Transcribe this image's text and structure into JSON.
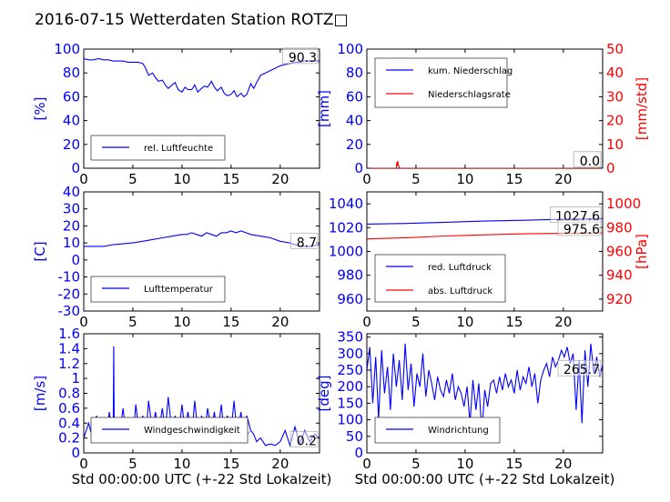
{
  "figure": {
    "title": "2016-07-15 Wetterdaten Station ROTZ□"
  },
  "colors": {
    "primary": "#0000ff",
    "secondary": "#ff0000",
    "axis": "#000000",
    "light": "#8080ff"
  },
  "chart_data": [
    {
      "id": "humidity",
      "type": "line",
      "xlim": [
        0,
        24
      ],
      "xticks": [
        0,
        5,
        10,
        15,
        20
      ],
      "ylim": [
        0,
        100
      ],
      "yticks": [
        0,
        20,
        40,
        60,
        80,
        100
      ],
      "ylabel": "[%]",
      "xlabel": "",
      "legend": {
        "entries": [
          "rel. Luftfeuchte"
        ],
        "placement": "lower-left"
      },
      "annotation": "90.3",
      "series": [
        {
          "name": "rel. Luftfeuchte",
          "color": "primary",
          "x": [
            0,
            0.5,
            1,
            1.5,
            2,
            2.5,
            3,
            3.5,
            4,
            4.5,
            5,
            5.5,
            6,
            6.3,
            6.6,
            7,
            7.3,
            7.6,
            8,
            8.3,
            8.6,
            9,
            9.3,
            9.6,
            10,
            10.3,
            10.6,
            11,
            11.3,
            11.6,
            12,
            12.3,
            12.6,
            13,
            13.3,
            13.6,
            14,
            14.3,
            14.6,
            15,
            15.3,
            15.6,
            16,
            16.3,
            16.6,
            17,
            17.3,
            17.6,
            18,
            18.5,
            19,
            19.5,
            20,
            20.5,
            21,
            21.5,
            22,
            22.5,
            23,
            23.5,
            24
          ],
          "y": [
            92,
            91,
            91,
            92,
            91,
            91,
            90,
            90,
            90,
            89,
            89,
            89,
            88,
            84,
            78,
            80,
            76,
            73,
            74,
            70,
            67,
            70,
            72,
            66,
            64,
            68,
            66,
            66,
            70,
            64,
            67,
            69,
            68,
            73,
            68,
            65,
            68,
            63,
            61,
            62,
            65,
            60,
            63,
            60,
            62,
            71,
            67,
            72,
            78,
            80,
            82,
            84,
            86,
            87,
            88,
            89,
            89,
            90,
            90,
            90,
            90
          ]
        }
      ]
    },
    {
      "id": "precip",
      "type": "line",
      "xlim": [
        0,
        24
      ],
      "xticks": [
        0,
        5,
        10,
        15,
        20
      ],
      "ylim": [
        0,
        100
      ],
      "yticks": [
        0,
        20,
        40,
        60,
        80,
        100
      ],
      "ylabel": "[mm]",
      "xlabel": "",
      "ylim2": [
        0,
        50
      ],
      "yticks2": [
        0,
        10,
        20,
        30,
        40,
        50
      ],
      "ylabel2": "[mm/std]",
      "legend": {
        "entries": [
          "kum. Niederschlag",
          "Niederschlagsrate"
        ],
        "placement": "upper-left"
      },
      "annotation": "0.0",
      "annotation2": "0.0",
      "series": [
        {
          "name": "kum. Niederschlag",
          "color": "primary",
          "x": [
            0,
            24
          ],
          "y": [
            0,
            0
          ]
        },
        {
          "name": "Niederschlagsrate",
          "color": "secondary",
          "axis": 2,
          "x": [
            0,
            3,
            3.05,
            3.1,
            3.15,
            3.2,
            3.3,
            3.4,
            24
          ],
          "y": [
            0,
            0,
            2.5,
            1.0,
            3.0,
            1.2,
            0.5,
            0,
            0
          ]
        }
      ]
    },
    {
      "id": "temp",
      "type": "line",
      "xlim": [
        0,
        24
      ],
      "xticks": [
        0,
        5,
        10,
        15,
        20
      ],
      "ylim": [
        -30,
        40
      ],
      "yticks": [
        -30,
        -20,
        -10,
        0,
        10,
        20,
        30,
        40
      ],
      "ylabel": "[C]",
      "xlabel": "",
      "legend": {
        "entries": [
          "Lufttemperatur"
        ],
        "placement": "lower-left"
      },
      "annotation": "8.7",
      "series": [
        {
          "name": "Lufttemperatur",
          "color": "primary",
          "x": [
            0,
            1,
            2,
            3,
            4,
            5,
            6,
            7,
            8,
            9,
            10,
            10.5,
            11,
            11.5,
            12,
            12.5,
            13,
            13.5,
            14,
            14.5,
            15,
            15.5,
            16,
            16.5,
            17,
            18,
            19,
            20,
            21,
            22,
            23,
            24
          ],
          "y": [
            8,
            8,
            8,
            9,
            9.5,
            10,
            11,
            12,
            13,
            14,
            15,
            15,
            16,
            15,
            14,
            16,
            15,
            14,
            16,
            16,
            17,
            16,
            17,
            16,
            15,
            14,
            13,
            11,
            10,
            8,
            8,
            9
          ]
        }
      ]
    },
    {
      "id": "pressure",
      "type": "line",
      "xlim": [
        0,
        24
      ],
      "xticks": [
        0,
        5,
        10,
        15,
        20
      ],
      "ylim": [
        950,
        1050
      ],
      "yticks": [
        960,
        980,
        1000,
        1020,
        1040
      ],
      "ylabel": "",
      "xlabel": "",
      "ylim2": [
        910,
        1010
      ],
      "yticks2": [
        920,
        940,
        960,
        980,
        1000
      ],
      "ylabel2": "[hPa]",
      "legend": {
        "entries": [
          "red. Luftdruck",
          "abs. Luftdruck"
        ],
        "placement": "lower-left"
      },
      "annotation": "1027.6",
      "annotation2": "975.6",
      "series": [
        {
          "name": "red. Luftdruck",
          "color": "primary",
          "x": [
            0,
            4,
            8,
            12,
            16,
            20,
            24
          ],
          "y": [
            1023,
            1023.5,
            1024.5,
            1025.5,
            1026.2,
            1027,
            1027.6
          ]
        },
        {
          "name": "abs. Luftdruck",
          "color": "secondary",
          "axis": 2,
          "x": [
            0,
            4,
            8,
            12,
            16,
            20,
            24
          ],
          "y": [
            970.5,
            971.5,
            973,
            974,
            974.8,
            975.2,
            975.6
          ]
        }
      ]
    },
    {
      "id": "wind",
      "type": "line",
      "xlim": [
        0,
        24
      ],
      "xticks": [
        0,
        5,
        10,
        15,
        20
      ],
      "ylim": [
        0,
        1.6
      ],
      "yticks": [
        0.0,
        0.2,
        0.4,
        0.6,
        0.8,
        1.0,
        1.2,
        1.4,
        1.6
      ],
      "ylabel": "[m/s]",
      "xlabel": "Std 00:00:00 UTC (+-22 Std Lokalzeit)",
      "legend": {
        "entries": [
          "Windgeschwindigkeit"
        ],
        "placement": "lower-left"
      },
      "annotation": "0.2",
      "series": [
        {
          "name": "Windgeschwindigkeit",
          "color": "primary",
          "x": [
            0,
            0.5,
            1,
            1.3,
            1.6,
            2,
            2.3,
            2.6,
            2.9,
            3.0,
            3.05,
            3.1,
            3.3,
            3.6,
            4,
            4.3,
            4.6,
            5,
            5.3,
            5.6,
            6,
            6.3,
            6.6,
            7,
            7.3,
            7.6,
            8,
            8.3,
            8.6,
            9,
            9.3,
            9.6,
            10,
            10.3,
            10.6,
            11,
            11.3,
            11.6,
            12,
            12.3,
            12.6,
            13,
            13.3,
            13.6,
            14,
            14.3,
            14.6,
            15,
            15.3,
            15.6,
            16,
            16.3,
            16.6,
            17,
            17.3,
            17.6,
            18,
            18.5,
            19,
            19.5,
            20,
            20.5,
            21,
            21.5,
            22,
            22.5,
            23,
            23.5,
            24
          ],
          "y": [
            0.2,
            0.4,
            0.15,
            0.5,
            0.2,
            0.4,
            0.18,
            0.55,
            0.2,
            0.3,
            1.43,
            0.25,
            0.4,
            0.2,
            0.6,
            0.25,
            0.45,
            0.2,
            0.65,
            0.3,
            0.5,
            0.2,
            0.7,
            0.3,
            0.55,
            0.25,
            0.6,
            0.3,
            0.75,
            0.25,
            0.5,
            0.2,
            0.65,
            0.3,
            0.55,
            0.25,
            0.7,
            0.3,
            0.5,
            0.2,
            0.6,
            0.3,
            0.55,
            0.2,
            0.65,
            0.25,
            0.5,
            0.3,
            0.7,
            0.25,
            0.55,
            0.2,
            0.5,
            0.3,
            0.25,
            0.15,
            0.2,
            0.1,
            0.12,
            0.1,
            0.15,
            0.3,
            0.1,
            0.35,
            0.12,
            0.3,
            0.15,
            0.25,
            0.2
          ]
        },
        {
          "name": "",
          "color": "light",
          "x": [
            1,
            1.5,
            2,
            2.5,
            3,
            3.5,
            4,
            4.5,
            5,
            5.5,
            6,
            6.5,
            7,
            7.5,
            8,
            8.5,
            9,
            9.5,
            10,
            10.5,
            11,
            11.5,
            12,
            12.5,
            13,
            13.5,
            14,
            14.5,
            15,
            15.5,
            16,
            16.5,
            17
          ],
          "y": [
            0.3,
            0.2,
            0.35,
            0.2,
            0.4,
            0.25,
            0.35,
            0.2,
            0.4,
            0.25,
            0.35,
            0.2,
            0.4,
            0.25,
            0.38,
            0.22,
            0.4,
            0.25,
            0.35,
            0.2,
            0.4,
            0.25,
            0.38,
            0.22,
            0.4,
            0.25,
            0.35,
            0.2,
            0.4,
            0.25,
            0.35,
            0.22,
            0.3
          ]
        }
      ]
    },
    {
      "id": "winddir",
      "type": "line",
      "xlim": [
        0,
        24
      ],
      "xticks": [
        0,
        5,
        10,
        15,
        20
      ],
      "ylim": [
        0,
        360
      ],
      "yticks": [
        0,
        50,
        100,
        150,
        200,
        250,
        300,
        350
      ],
      "ylabel": "[deg]",
      "xlabel": "Std 00:00:00 UTC (+-22 Std Lokalzeit)",
      "legend": {
        "entries": [
          "Windrichtung"
        ],
        "placement": "lower-left"
      },
      "annotation": "265.7",
      "series": [
        {
          "name": "Windrichtung",
          "color": "primary",
          "x": [
            0,
            0.3,
            0.6,
            0.9,
            1.2,
            1.5,
            1.8,
            2.1,
            2.4,
            2.7,
            3.0,
            3.3,
            3.6,
            3.9,
            4.2,
            4.5,
            4.8,
            5.1,
            5.4,
            5.7,
            6.0,
            6.3,
            6.6,
            6.9,
            7.2,
            7.5,
            7.8,
            8.1,
            8.4,
            8.7,
            9.0,
            9.3,
            9.6,
            9.9,
            10.2,
            10.5,
            10.8,
            11.1,
            11.4,
            11.7,
            12.0,
            12.3,
            12.6,
            12.9,
            13.2,
            13.5,
            13.8,
            14.1,
            14.4,
            14.7,
            15.0,
            15.3,
            15.6,
            15.9,
            16.2,
            16.5,
            16.8,
            17.1,
            17.4,
            17.7,
            18.0,
            18.3,
            18.6,
            18.9,
            19.2,
            19.5,
            19.8,
            20.1,
            20.4,
            20.7,
            21.0,
            21.3,
            21.6,
            21.9,
            22.2,
            22.5,
            22.8,
            23.1,
            23.4,
            23.7,
            24.0
          ],
          "y": [
            250,
            320,
            150,
            290,
            100,
            310,
            180,
            260,
            130,
            300,
            200,
            280,
            160,
            330,
            190,
            270,
            140,
            240,
            200,
            300,
            170,
            250,
            210,
            160,
            230,
            190,
            170,
            220,
            180,
            240,
            160,
            200,
            180,
            140,
            200,
            90,
            220,
            130,
            210,
            60,
            190,
            140,
            210,
            220,
            180,
            230,
            190,
            240,
            200,
            220,
            180,
            250,
            190,
            230,
            210,
            260,
            200,
            240,
            150,
            220,
            250,
            270,
            230,
            290,
            260,
            280,
            310,
            290,
            320,
            270,
            300,
            130,
            280,
            90,
            310,
            200,
            330,
            240,
            290,
            230,
            266
          ]
        }
      ]
    }
  ]
}
